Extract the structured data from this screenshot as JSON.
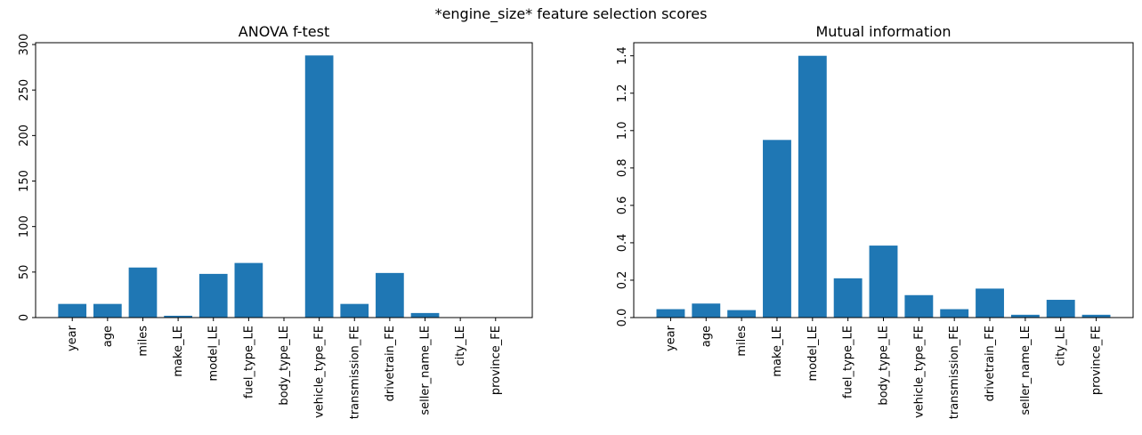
{
  "figure": {
    "suptitle": "*engine_size* feature selection scores"
  },
  "chart_data": [
    {
      "type": "bar",
      "title": "ANOVA f-test",
      "xlabel": "",
      "ylabel": "",
      "color": "#1f77b4",
      "categories": [
        "year",
        "age",
        "miles",
        "make_LE",
        "model_LE",
        "fuel_type_LE",
        "body_type_LE",
        "vehicle_type_FE",
        "transmission_FE",
        "drivetrain_FE",
        "seller_name_LE",
        "city_LE",
        "province_FE"
      ],
      "values": [
        15,
        15,
        55,
        2,
        48,
        60,
        0,
        288,
        15,
        49,
        5,
        0,
        0
      ],
      "yticks": [
        0,
        50,
        100,
        150,
        200,
        250,
        300
      ],
      "ylim": [
        0,
        302
      ]
    },
    {
      "type": "bar",
      "title": "Mutual information",
      "xlabel": "",
      "ylabel": "",
      "color": "#1f77b4",
      "categories": [
        "year",
        "age",
        "miles",
        "make_LE",
        "model_LE",
        "fuel_type_LE",
        "body_type_LE",
        "vehicle_type_FE",
        "transmission_FE",
        "drivetrain_FE",
        "seller_name_LE",
        "city_LE",
        "province_FE"
      ],
      "values": [
        0.045,
        0.075,
        0.04,
        0.95,
        1.4,
        0.21,
        0.385,
        0.12,
        0.045,
        0.155,
        0.015,
        0.095,
        0.015
      ],
      "yticks": [
        0.0,
        0.2,
        0.4,
        0.6,
        0.8,
        1.0,
        1.2,
        1.4
      ],
      "ylim": [
        0,
        1.47
      ]
    }
  ]
}
